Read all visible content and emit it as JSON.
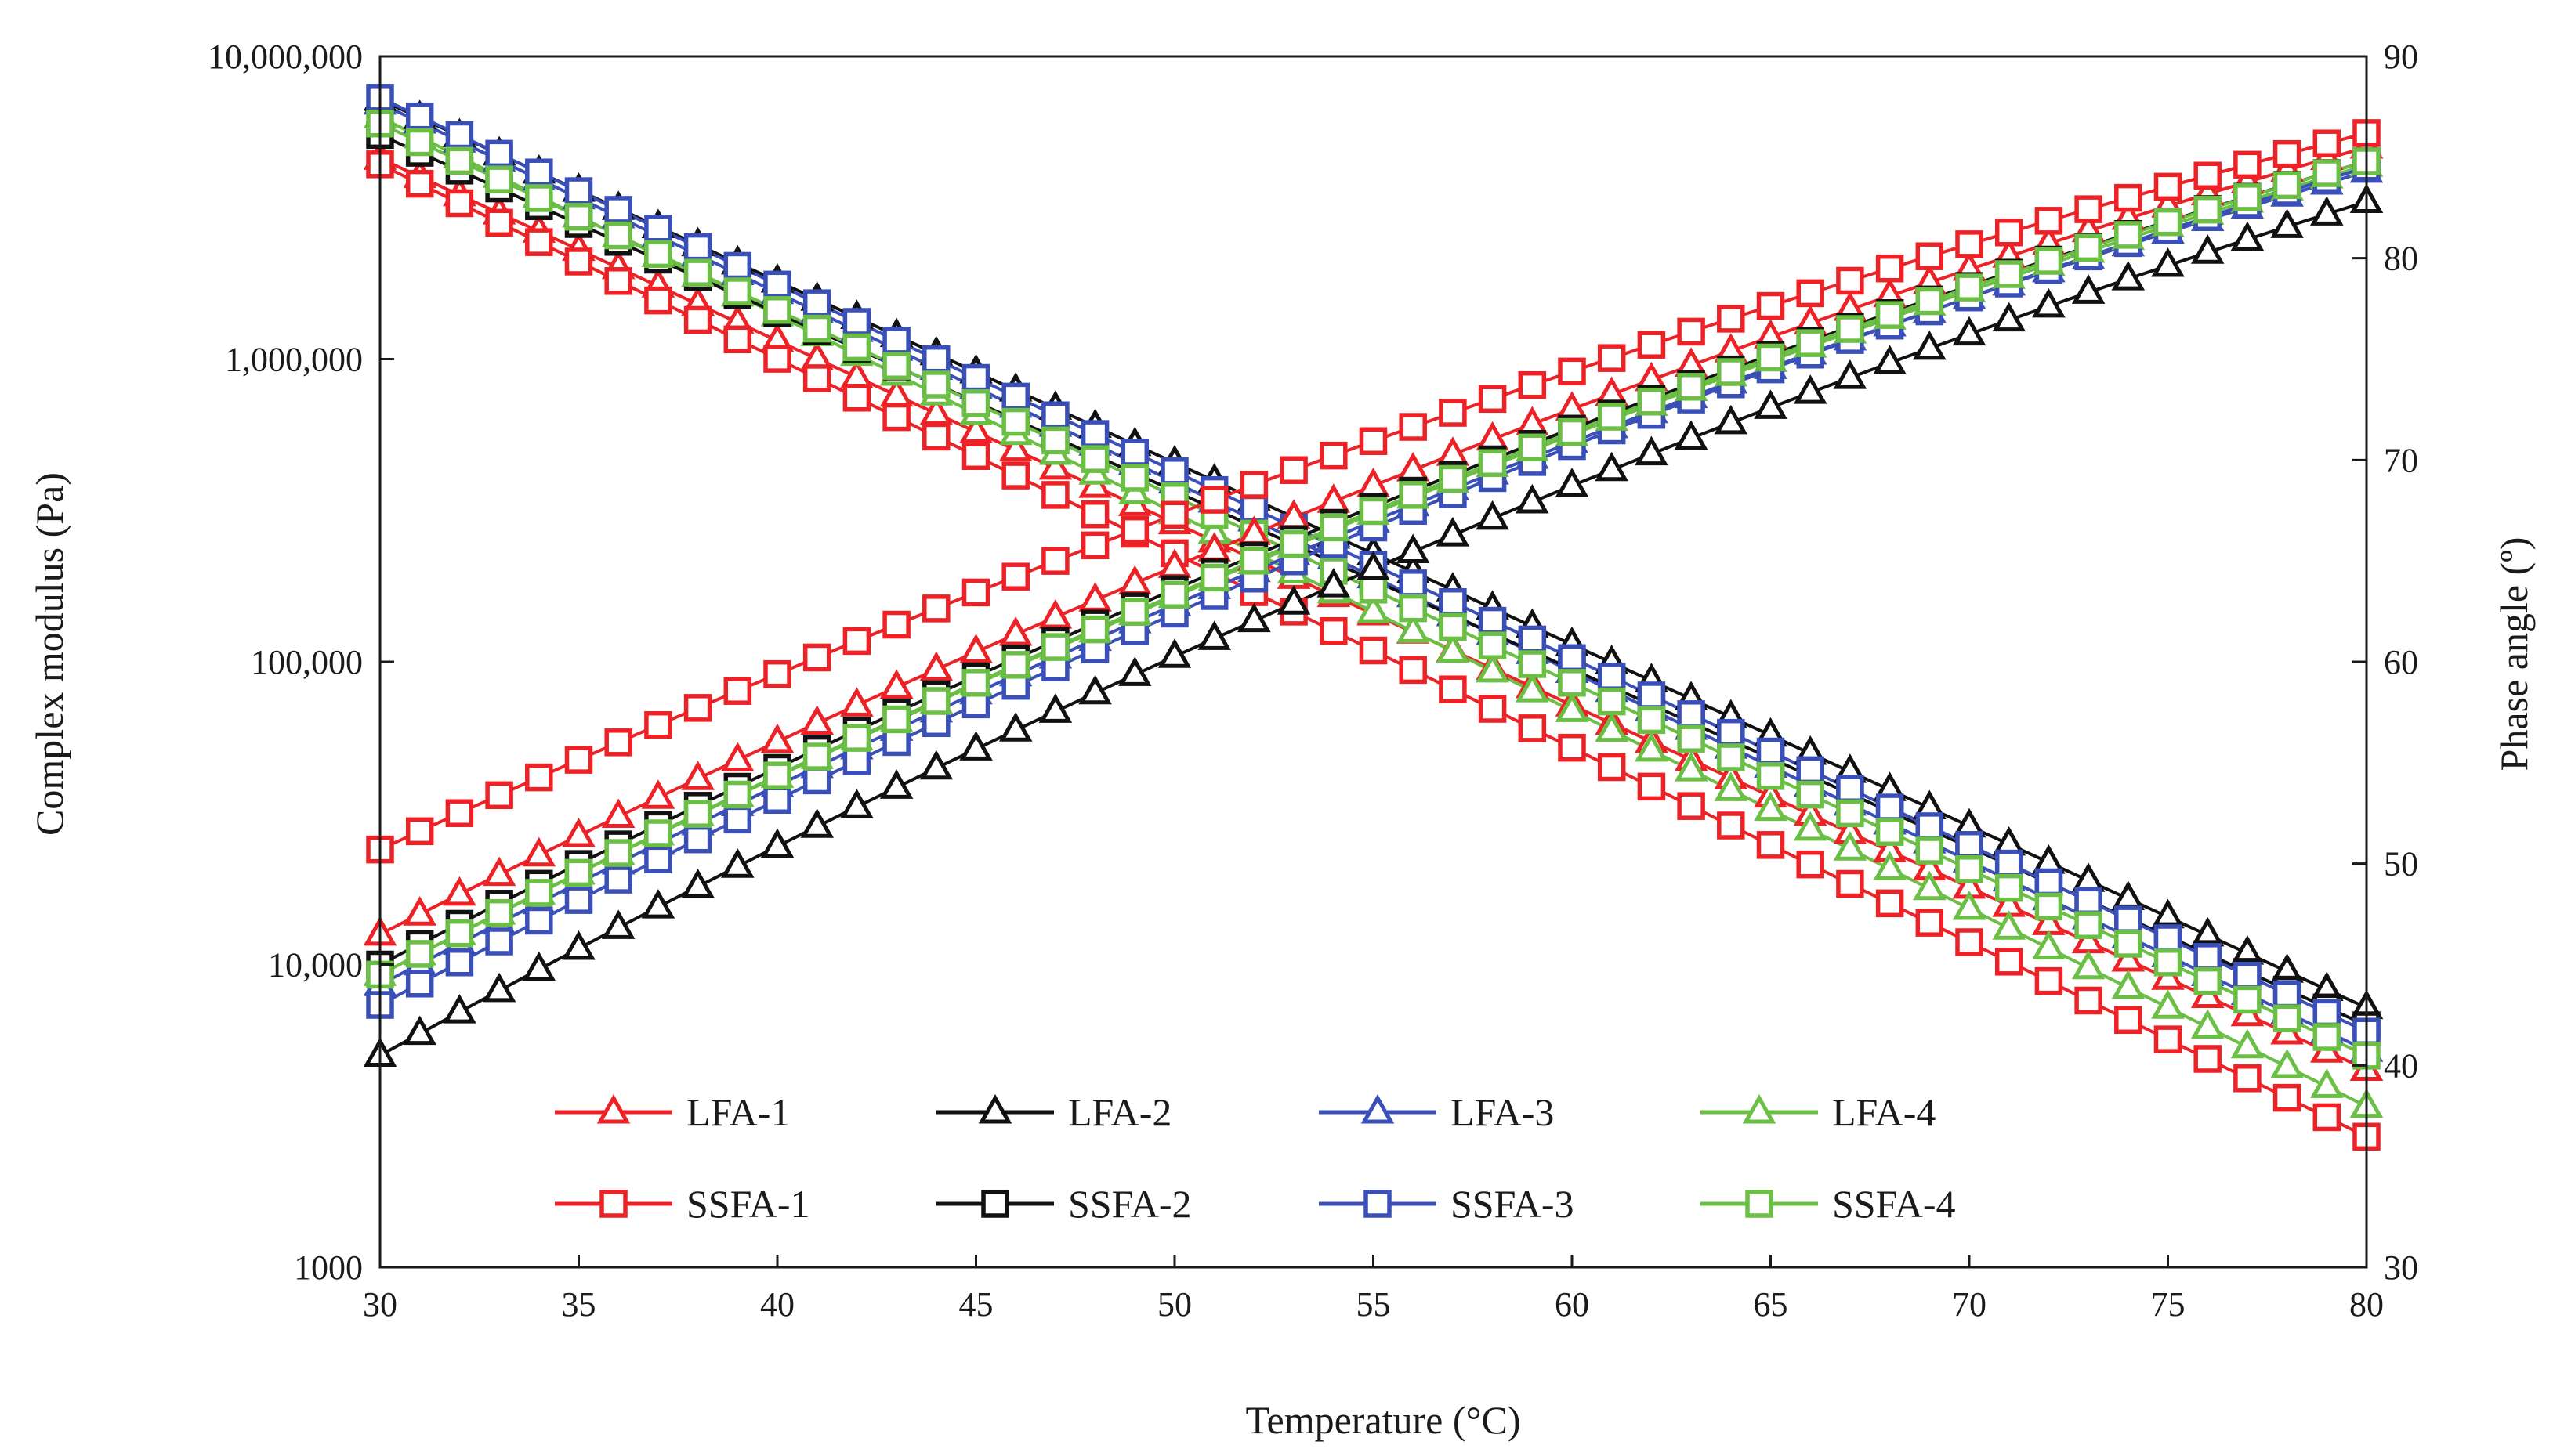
{
  "chart_data": {
    "type": "line",
    "title": "",
    "xlabel": "Temperature (°C)",
    "ylabel_left": "Complex modulus (Pa)",
    "ylabel_right": "Phase angle (º)",
    "x_range": [
      30,
      80
    ],
    "x_ticks": [
      30,
      35,
      40,
      45,
      50,
      55,
      60,
      65,
      70,
      75,
      80
    ],
    "x_tick_labels": [
      "30",
      "35",
      "40",
      "45",
      "50",
      "55",
      "60",
      "65",
      "70",
      "75",
      "80"
    ],
    "y_left_scale": "log",
    "y_left_range": [
      1000,
      10000000
    ],
    "y_left_tick_values": [
      1000,
      10000,
      100000,
      1000000,
      10000000
    ],
    "y_left_tick_labels": [
      "1000",
      "10,000",
      "100,000",
      "1,000,000",
      "10,000,000"
    ],
    "y_right_range": [
      30,
      90
    ],
    "y_right_tick_values": [
      30,
      40,
      50,
      60,
      70,
      80,
      90
    ],
    "y_right_tick_labels": [
      "30",
      "40",
      "50",
      "60",
      "70",
      "80",
      "90"
    ],
    "x_step": 1,
    "legend_position": "bottom-center, inside plot, 4 columns x 2 rows",
    "series": [
      {
        "name": "LFA-1",
        "marker": "triangle",
        "color": "#ec2227",
        "axis": "left",
        "start": 4600000,
        "end": 4500
      },
      {
        "name": "LFA-2",
        "marker": "triangle",
        "color": "#111111",
        "axis": "left",
        "start": 7200000,
        "end": 7200
      },
      {
        "name": "LFA-3",
        "marker": "triangle",
        "color": "#3a4fb8",
        "axis": "left",
        "start": 7000000,
        "end": 5200
      },
      {
        "name": "LFA-4",
        "marker": "triangle",
        "color": "#6bbf45",
        "axis": "left",
        "start": 6300000,
        "end": 3400
      },
      {
        "name": "SSFA-1",
        "marker": "square",
        "color": "#ec2227",
        "axis": "left",
        "start": 4400000,
        "end": 2700
      },
      {
        "name": "SSFA-2",
        "marker": "square",
        "color": "#111111",
        "axis": "left",
        "start": 5500000,
        "end": 6300
      },
      {
        "name": "SSFA-3",
        "marker": "square",
        "color": "#3a4fb8",
        "axis": "left",
        "start": 7300000,
        "end": 6000
      },
      {
        "name": "SSFA-4",
        "marker": "square",
        "color": "#6bbf45",
        "axis": "left",
        "start": 6000000,
        "end": 5000
      },
      {
        "name": "LFA-1",
        "marker": "triangle",
        "color": "#ec2227",
        "axis": "right",
        "start": 46.5,
        "end": 85.5
      },
      {
        "name": "LFA-2",
        "marker": "triangle",
        "color": "#111111",
        "axis": "right",
        "start": 40.5,
        "end": 82.8
      },
      {
        "name": "LFA-3",
        "marker": "triangle",
        "color": "#3a4fb8",
        "axis": "right",
        "start": 44.0,
        "end": 84.3
      },
      {
        "name": "LFA-4",
        "marker": "triangle",
        "color": "#6bbf45",
        "axis": "right",
        "start": 44.5,
        "end": 84.6
      },
      {
        "name": "SSFA-1",
        "marker": "square",
        "color": "#ec2227",
        "axis": "right",
        "start": 50.7,
        "end": 86.2
      },
      {
        "name": "SSFA-2",
        "marker": "square",
        "color": "#111111",
        "axis": "right",
        "start": 45.0,
        "end": 84.8
      },
      {
        "name": "SSFA-3",
        "marker": "square",
        "color": "#3a4fb8",
        "axis": "right",
        "start": 43.0,
        "end": 84.5
      },
      {
        "name": "SSFA-4",
        "marker": "square",
        "color": "#6bbf45",
        "axis": "right",
        "start": 44.5,
        "end": 84.8
      }
    ]
  }
}
